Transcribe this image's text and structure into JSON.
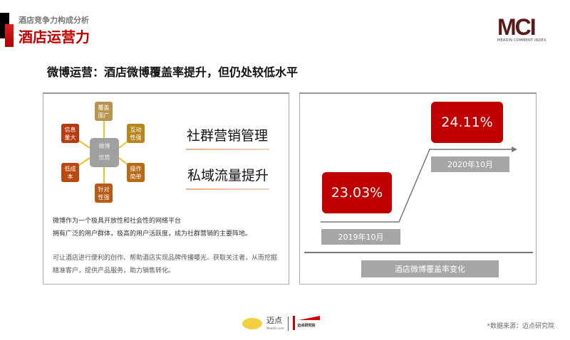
{
  "header": {
    "subtitle": "酒店竞争力构成分析",
    "title": "酒店运营力",
    "logo_text": "MCI",
    "logo_subtext": "MEADIN COMMENT INDEX"
  },
  "headline": "微博运营：酒店微博覆盖率提升，但仍处较低水平",
  "diagram": {
    "center": [
      "微博",
      "优势"
    ],
    "nodes": [
      {
        "label": "覆盖面广",
        "color": "#b8954f"
      },
      {
        "label": "互动性强",
        "color": "#b8861f"
      },
      {
        "label": "操作简单",
        "color": "#b86a18"
      },
      {
        "label": "针对性强",
        "color": "#b85a18"
      },
      {
        "label": "低成本",
        "color": "#b84a10"
      },
      {
        "label": "信息量大",
        "color": "#b83a10"
      }
    ],
    "connector_color": "#f0c020"
  },
  "keywords": [
    "社群营销管理",
    "私域流量提升"
  ],
  "paragraphs": [
    "微博作为一个极具开放性和社会性的网络平台",
    "拥有广泛的用户群体，极高的用户活跃度，成为社群营销的主要阵地。",
    "可让酒店进行便利的创作、帮助酒店实现品牌传播曝光、获取关注者，从而挖掘精准客户，提供产品服务，助力销售转化。"
  ],
  "coverage": {
    "points": [
      {
        "period": "2019年10月",
        "value": "23.03%"
      },
      {
        "period": "2020年10月",
        "value": "24.11%"
      }
    ],
    "caption": "酒店微博覆盖率变化",
    "accent": "#c00000"
  },
  "footer": {
    "brand": "迈点",
    "brand_url": "Meadin.com",
    "institute": "迈点研究院",
    "source": "*数据来源：迈点研究院"
  }
}
